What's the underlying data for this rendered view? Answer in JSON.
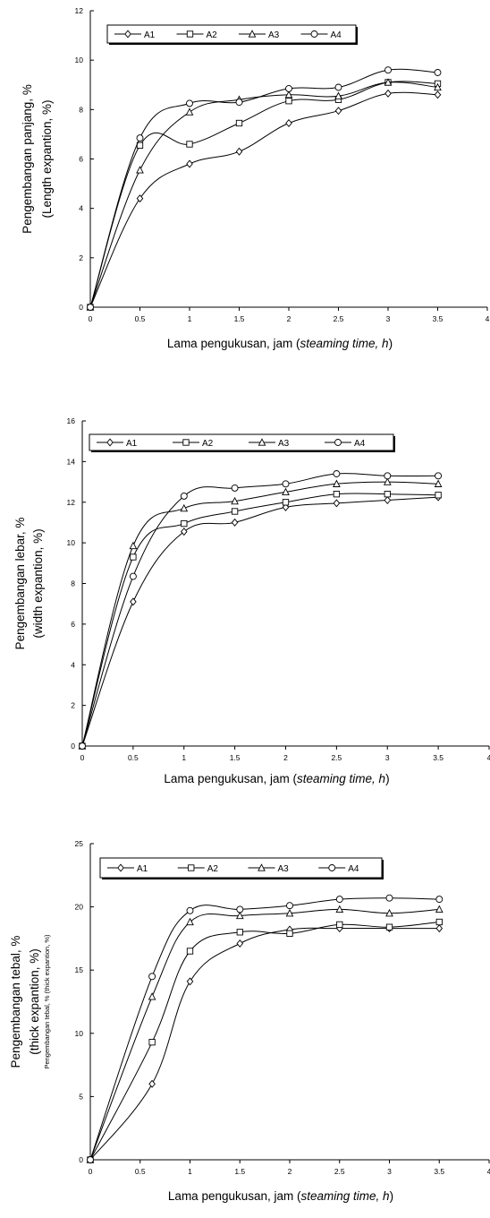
{
  "chart_data": [
    {
      "type": "line",
      "title": "",
      "ylabel_lines": [
        "Pengembangan panjang, %",
        "(Length expantion, %)"
      ],
      "xlabel": "Lama pengukusan, jam (",
      "xlabel_italic": "steaming time, h",
      "xlabel_close": ")",
      "xlim": [
        0,
        4
      ],
      "ylim": [
        0,
        12
      ],
      "xticks": [
        0,
        0.5,
        1,
        1.5,
        2,
        2.5,
        3,
        3.5,
        4
      ],
      "xtick_labels": [
        "0",
        "0.5",
        "1",
        "1.5",
        "2",
        "2.5",
        "3",
        "3.5",
        "4"
      ],
      "yticks": [
        0,
        2,
        4,
        6,
        8,
        10,
        12
      ],
      "ytick_labels": [
        "0",
        "2",
        "4",
        "6",
        "8",
        "10",
        "12"
      ],
      "legend_position": "top",
      "x": [
        0,
        0.5,
        1,
        1.5,
        2,
        2.5,
        3,
        3.5
      ],
      "series": [
        {
          "name": "A1",
          "marker": "diamond",
          "values": [
            0,
            4.4,
            5.8,
            6.3,
            7.45,
            7.95,
            8.65,
            8.6
          ]
        },
        {
          "name": "A2",
          "marker": "square",
          "values": [
            0,
            6.55,
            6.6,
            7.45,
            8.35,
            8.4,
            9.1,
            9.05
          ]
        },
        {
          "name": "A3",
          "marker": "triangle",
          "values": [
            0,
            5.55,
            7.9,
            8.4,
            8.6,
            8.55,
            9.1,
            8.9
          ]
        },
        {
          "name": "A4",
          "marker": "circle",
          "values": [
            0,
            6.85,
            8.25,
            8.3,
            8.85,
            8.9,
            9.6,
            9.5
          ]
        }
      ]
    },
    {
      "type": "line",
      "title": "",
      "ylabel_lines": [
        "Pengembangan lebar, %",
        "(width expantion, %)"
      ],
      "xlabel": "Lama pengukusan, jam (",
      "xlabel_italic": "steaming time, h",
      "xlabel_close": ")",
      "xlim": [
        0,
        4
      ],
      "ylim": [
        0,
        16
      ],
      "xticks": [
        0,
        0.5,
        1,
        1.5,
        2,
        2.5,
        3,
        3.5,
        4
      ],
      "xtick_labels": [
        "0",
        "0.5",
        "1",
        "1.5",
        "2",
        "2.5",
        "3",
        "3.5",
        "4"
      ],
      "yticks": [
        0,
        2,
        4,
        6,
        8,
        10,
        12,
        14,
        16
      ],
      "ytick_labels": [
        "0",
        "2",
        "4",
        "6",
        "8",
        "10",
        "12",
        "14",
        "16"
      ],
      "legend_position": "top",
      "x": [
        0,
        0.5,
        1,
        1.5,
        2,
        2.5,
        3,
        3.5
      ],
      "series": [
        {
          "name": "A1",
          "marker": "diamond",
          "values": [
            0,
            7.1,
            10.55,
            11.0,
            11.75,
            11.95,
            12.1,
            12.25
          ]
        },
        {
          "name": "A2",
          "marker": "square",
          "values": [
            0,
            9.3,
            10.95,
            11.55,
            12.0,
            12.4,
            12.4,
            12.35
          ]
        },
        {
          "name": "A3",
          "marker": "triangle",
          "values": [
            0,
            9.85,
            11.7,
            12.05,
            12.5,
            12.9,
            13.0,
            12.9
          ]
        },
        {
          "name": "A4",
          "marker": "circle",
          "values": [
            0,
            8.35,
            12.3,
            12.7,
            12.9,
            13.4,
            13.3,
            13.3
          ]
        }
      ]
    },
    {
      "type": "line",
      "title": "",
      "ylabel_lines": [
        "Pengembangan tebal, %",
        "(thick expantion, %)"
      ],
      "ylabel_small": "Pengembangan tebal, % (thick expantion, %)",
      "xlabel": "Lama pengukusan, jam (",
      "xlabel_italic": "steaming time, h",
      "xlabel_close": ")",
      "xlim": [
        0,
        4
      ],
      "ylim": [
        0,
        25
      ],
      "xticks": [
        0,
        0.5,
        1,
        1.5,
        2,
        2.5,
        3,
        3.5,
        4
      ],
      "xtick_labels": [
        "0",
        "0.5",
        "1",
        "1.5",
        "2",
        "2.5",
        "3",
        "3.5",
        "4"
      ],
      "yticks": [
        0,
        5,
        10,
        15,
        20,
        25
      ],
      "ytick_labels": [
        "0",
        "5",
        "10",
        "15",
        "20",
        "25"
      ],
      "legend_position": "top",
      "x": [
        0,
        0.62,
        1,
        1.5,
        2,
        2.5,
        3,
        3.5
      ],
      "series": [
        {
          "name": "A1",
          "marker": "diamond",
          "values": [
            0,
            6.0,
            14.1,
            17.1,
            18.2,
            18.3,
            18.3,
            18.3
          ]
        },
        {
          "name": "A2",
          "marker": "square",
          "values": [
            0,
            9.3,
            16.5,
            18.0,
            17.9,
            18.6,
            18.4,
            18.8
          ]
        },
        {
          "name": "A3",
          "marker": "triangle",
          "values": [
            0,
            12.9,
            18.8,
            19.3,
            19.5,
            19.8,
            19.5,
            19.8
          ]
        },
        {
          "name": "A4",
          "marker": "circle",
          "values": [
            0,
            14.5,
            19.7,
            19.8,
            20.1,
            20.6,
            20.7,
            20.6
          ]
        }
      ]
    }
  ]
}
